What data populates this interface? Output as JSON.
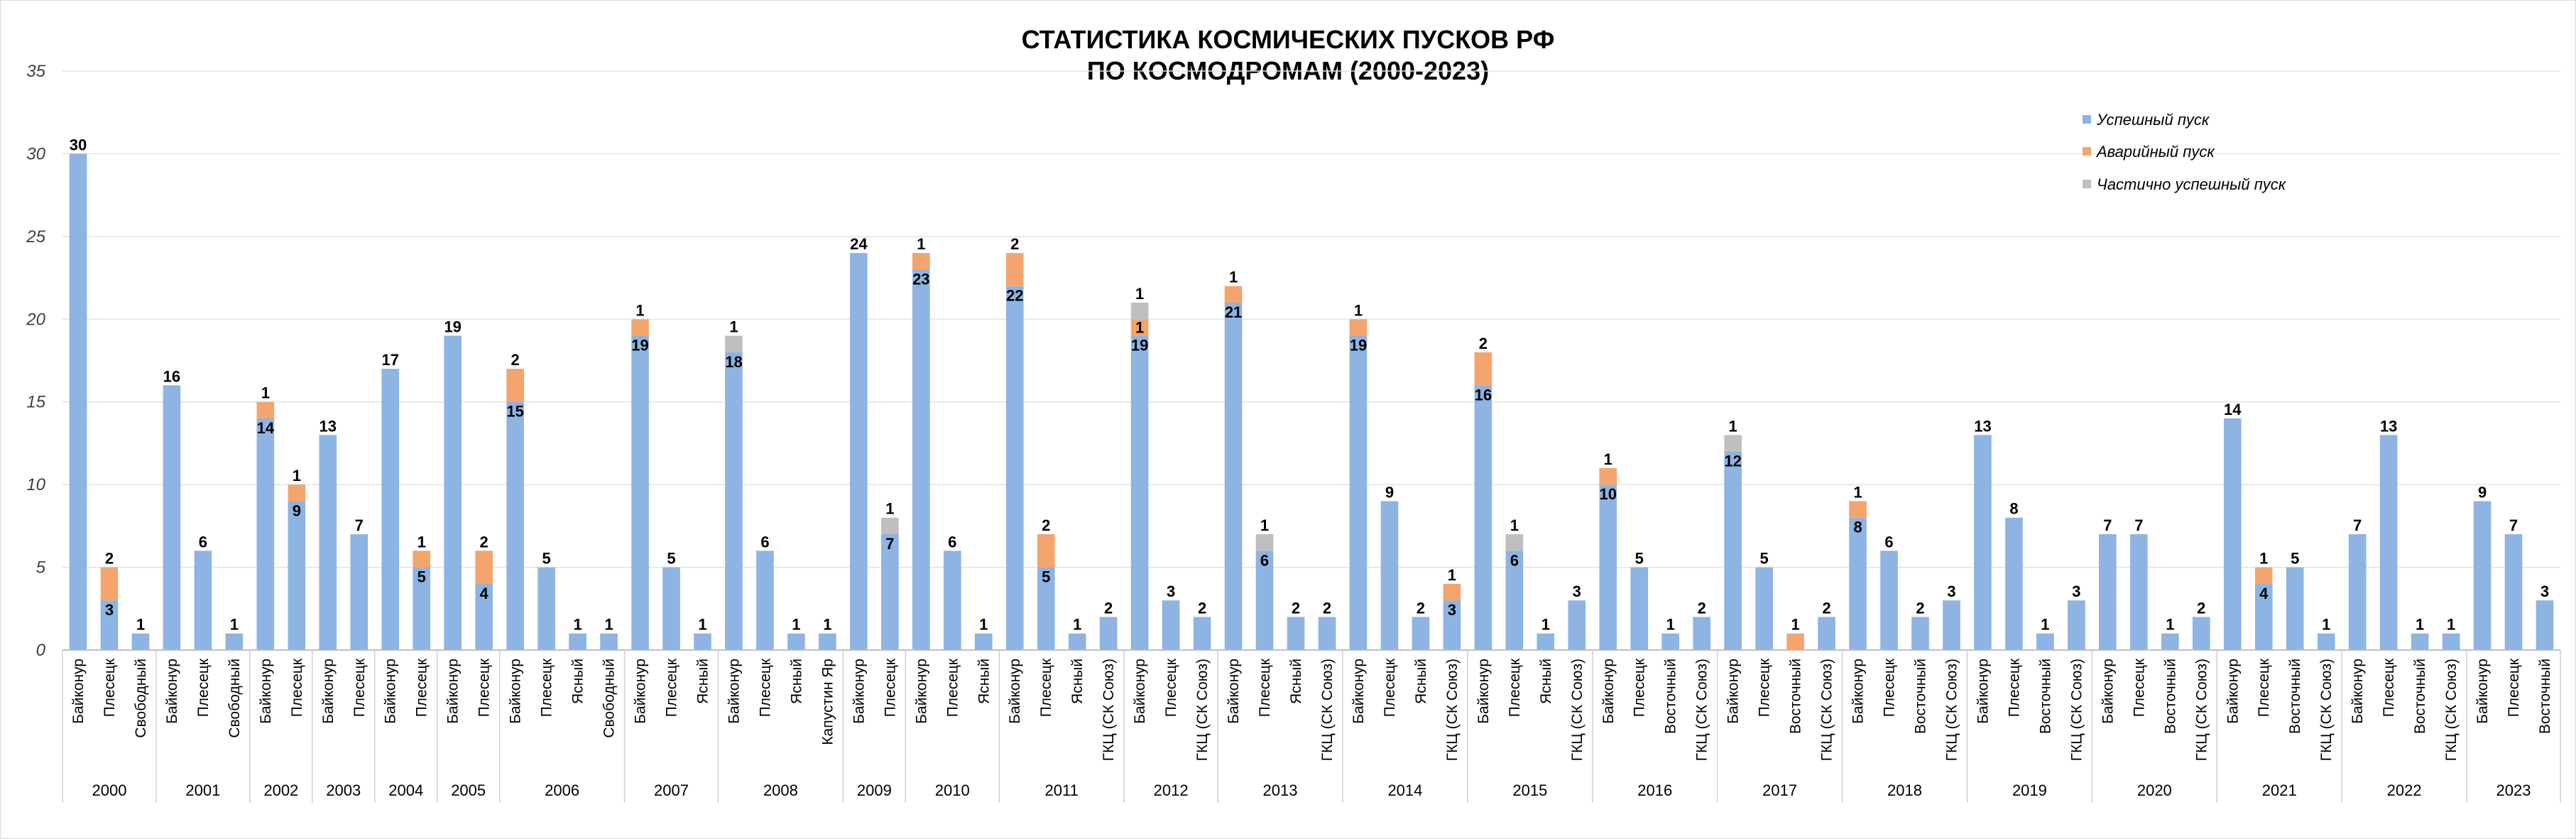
{
  "chart_data": {
    "type": "bar",
    "stacked": true,
    "title": [
      "СТАТИСТИКА КОСМИЧЕСКИХ ПУСКОВ РФ",
      "ПО КОСМОДРОМАМ (2000-2023)"
    ],
    "xlabel": "",
    "ylabel": "",
    "ylim": [
      0,
      35
    ],
    "yticks": [
      0,
      5,
      10,
      15,
      20,
      25,
      30,
      35
    ],
    "grid": true,
    "legend_position": "top-right",
    "colors": [
      "#8db4e2",
      "#f4a46d",
      "#bfbfbf"
    ],
    "legend": [
      "Успешный пуск",
      "Аварийный пуск",
      "Частично успешный пуск"
    ],
    "groups": [
      {
        "year": "2000",
        "sites": [
          "Байконур",
          "Плесецк",
          "Свободный"
        ],
        "success": [
          30,
          3,
          1
        ],
        "failure": [
          0,
          2,
          0
        ],
        "partial": [
          0,
          0,
          0
        ]
      },
      {
        "year": "2001",
        "sites": [
          "Байконур",
          "Плесецк",
          "Свободный"
        ],
        "success": [
          16,
          6,
          1
        ],
        "failure": [
          0,
          0,
          0
        ],
        "partial": [
          0,
          0,
          0
        ]
      },
      {
        "year": "2002",
        "sites": [
          "Байконур",
          "Плесецк"
        ],
        "success": [
          14,
          9
        ],
        "failure": [
          1,
          1
        ],
        "partial": [
          0,
          0
        ]
      },
      {
        "year": "2003",
        "sites": [
          "Байконур",
          "Плесецк"
        ],
        "success": [
          13,
          7
        ],
        "failure": [
          0,
          0
        ],
        "partial": [
          0,
          0
        ]
      },
      {
        "year": "2004",
        "sites": [
          "Байконур",
          "Плесецк"
        ],
        "success": [
          17,
          5
        ],
        "failure": [
          0,
          1
        ],
        "partial": [
          0,
          0
        ]
      },
      {
        "year": "2005",
        "sites": [
          "Байконур",
          "Плесецк"
        ],
        "success": [
          19,
          4
        ],
        "failure": [
          0,
          2
        ],
        "partial": [
          0,
          0
        ]
      },
      {
        "year": "2006",
        "sites": [
          "Байконур",
          "Плесецк",
          "Ясный",
          "Свободный"
        ],
        "success": [
          15,
          5,
          1,
          1
        ],
        "failure": [
          2,
          0,
          0,
          0
        ],
        "partial": [
          0,
          0,
          0,
          0
        ]
      },
      {
        "year": "2007",
        "sites": [
          "Байконур",
          "Плесецк",
          "Ясный"
        ],
        "success": [
          19,
          5,
          1
        ],
        "failure": [
          1,
          0,
          0
        ],
        "partial": [
          0,
          0,
          0
        ]
      },
      {
        "year": "2008",
        "sites": [
          "Байконур",
          "Плесецк",
          "Ясный",
          "Капустин Яр"
        ],
        "success": [
          18,
          6,
          1,
          1
        ],
        "failure": [
          0,
          0,
          0,
          0
        ],
        "partial": [
          1,
          0,
          0,
          0
        ]
      },
      {
        "year": "2009",
        "sites": [
          "Байконур",
          "Плесецк"
        ],
        "success": [
          24,
          7
        ],
        "failure": [
          0,
          0
        ],
        "partial": [
          0,
          1
        ]
      },
      {
        "year": "2010",
        "sites": [
          "Байконур",
          "Плесецк",
          "Ясный"
        ],
        "success": [
          23,
          6,
          1
        ],
        "failure": [
          1,
          0,
          0
        ],
        "partial": [
          0,
          0,
          0
        ]
      },
      {
        "year": "2011",
        "sites": [
          "Байконур",
          "Плесецк",
          "Ясный",
          "ГКЦ (СК Союз)"
        ],
        "success": [
          22,
          5,
          1,
          2
        ],
        "failure": [
          2,
          2,
          0,
          0
        ],
        "partial": [
          0,
          0,
          0,
          0
        ]
      },
      {
        "year": "2012",
        "sites": [
          "Байконур",
          "Плесецк",
          "ГКЦ (СК Союз)"
        ],
        "success": [
          19,
          3,
          2
        ],
        "failure": [
          1,
          0,
          0
        ],
        "partial": [
          1,
          0,
          0
        ]
      },
      {
        "year": "2013",
        "sites": [
          "Байконур",
          "Плесецк",
          "Ясный",
          "ГКЦ (СК Союз)"
        ],
        "success": [
          21,
          6,
          2,
          2
        ],
        "failure": [
          1,
          0,
          0,
          0
        ],
        "partial": [
          0,
          1,
          0,
          0
        ]
      },
      {
        "year": "2014",
        "sites": [
          "Байконур",
          "Плесецк",
          "Ясный",
          "ГКЦ (СК Союз)"
        ],
        "success": [
          19,
          9,
          2,
          3
        ],
        "failure": [
          1,
          0,
          0,
          1
        ],
        "partial": [
          0,
          0,
          0,
          0
        ]
      },
      {
        "year": "2015",
        "sites": [
          "Байконур",
          "Плесецк",
          "Ясный",
          "ГКЦ (СК Союз)"
        ],
        "success": [
          16,
          6,
          1,
          3
        ],
        "failure": [
          2,
          0,
          0,
          0
        ],
        "partial": [
          0,
          1,
          0,
          0
        ]
      },
      {
        "year": "2016",
        "sites": [
          "Байконур",
          "Плесецк",
          "Восточный",
          "ГКЦ (СК Союз)"
        ],
        "success": [
          10,
          5,
          1,
          2
        ],
        "failure": [
          1,
          0,
          0,
          0
        ],
        "partial": [
          0,
          0,
          0,
          0
        ]
      },
      {
        "year": "2017",
        "sites": [
          "Байконур",
          "Плесецк",
          "Восточный",
          "ГКЦ (СК Союз)"
        ],
        "success": [
          12,
          5,
          0,
          2
        ],
        "failure": [
          0,
          0,
          1,
          0
        ],
        "partial": [
          1,
          0,
          0,
          0
        ]
      },
      {
        "year": "2018",
        "sites": [
          "Байконур",
          "Плесецк",
          "Восточный",
          "ГКЦ (СК Союз)"
        ],
        "success": [
          8,
          6,
          2,
          3
        ],
        "failure": [
          1,
          0,
          0,
          0
        ],
        "partial": [
          0,
          0,
          0,
          0
        ]
      },
      {
        "year": "2019",
        "sites": [
          "Байконур",
          "Плесецк",
          "Восточный",
          "ГКЦ (СК Союз)"
        ],
        "success": [
          13,
          8,
          1,
          3
        ],
        "failure": [
          0,
          0,
          0,
          0
        ],
        "partial": [
          0,
          0,
          0,
          0
        ]
      },
      {
        "year": "2020",
        "sites": [
          "Байконур",
          "Плесецк",
          "Восточный",
          "ГКЦ (СК Союз)"
        ],
        "success": [
          7,
          7,
          1,
          2
        ],
        "failure": [
          0,
          0,
          0,
          0
        ],
        "partial": [
          0,
          0,
          0,
          0
        ]
      },
      {
        "year": "2021",
        "sites": [
          "Байконур",
          "Плесецк",
          "Восточный",
          "ГКЦ (СК Союз)"
        ],
        "success": [
          14,
          4,
          5,
          1
        ],
        "failure": [
          0,
          1,
          0,
          0
        ],
        "partial": [
          0,
          0,
          0,
          0
        ]
      },
      {
        "year": "2022",
        "sites": [
          "Байконур",
          "Плесецк",
          "Восточный",
          "ГКЦ (СК Союз)"
        ],
        "success": [
          7,
          13,
          1,
          1
        ],
        "failure": [
          0,
          0,
          0,
          0
        ],
        "partial": [
          0,
          0,
          0,
          0
        ]
      },
      {
        "year": "2023",
        "sites": [
          "Байконур",
          "Плесецк",
          "Восточный"
        ],
        "success": [
          9,
          7,
          3
        ],
        "failure": [
          0,
          0,
          0
        ],
        "partial": [
          0,
          0,
          0
        ]
      }
    ]
  }
}
